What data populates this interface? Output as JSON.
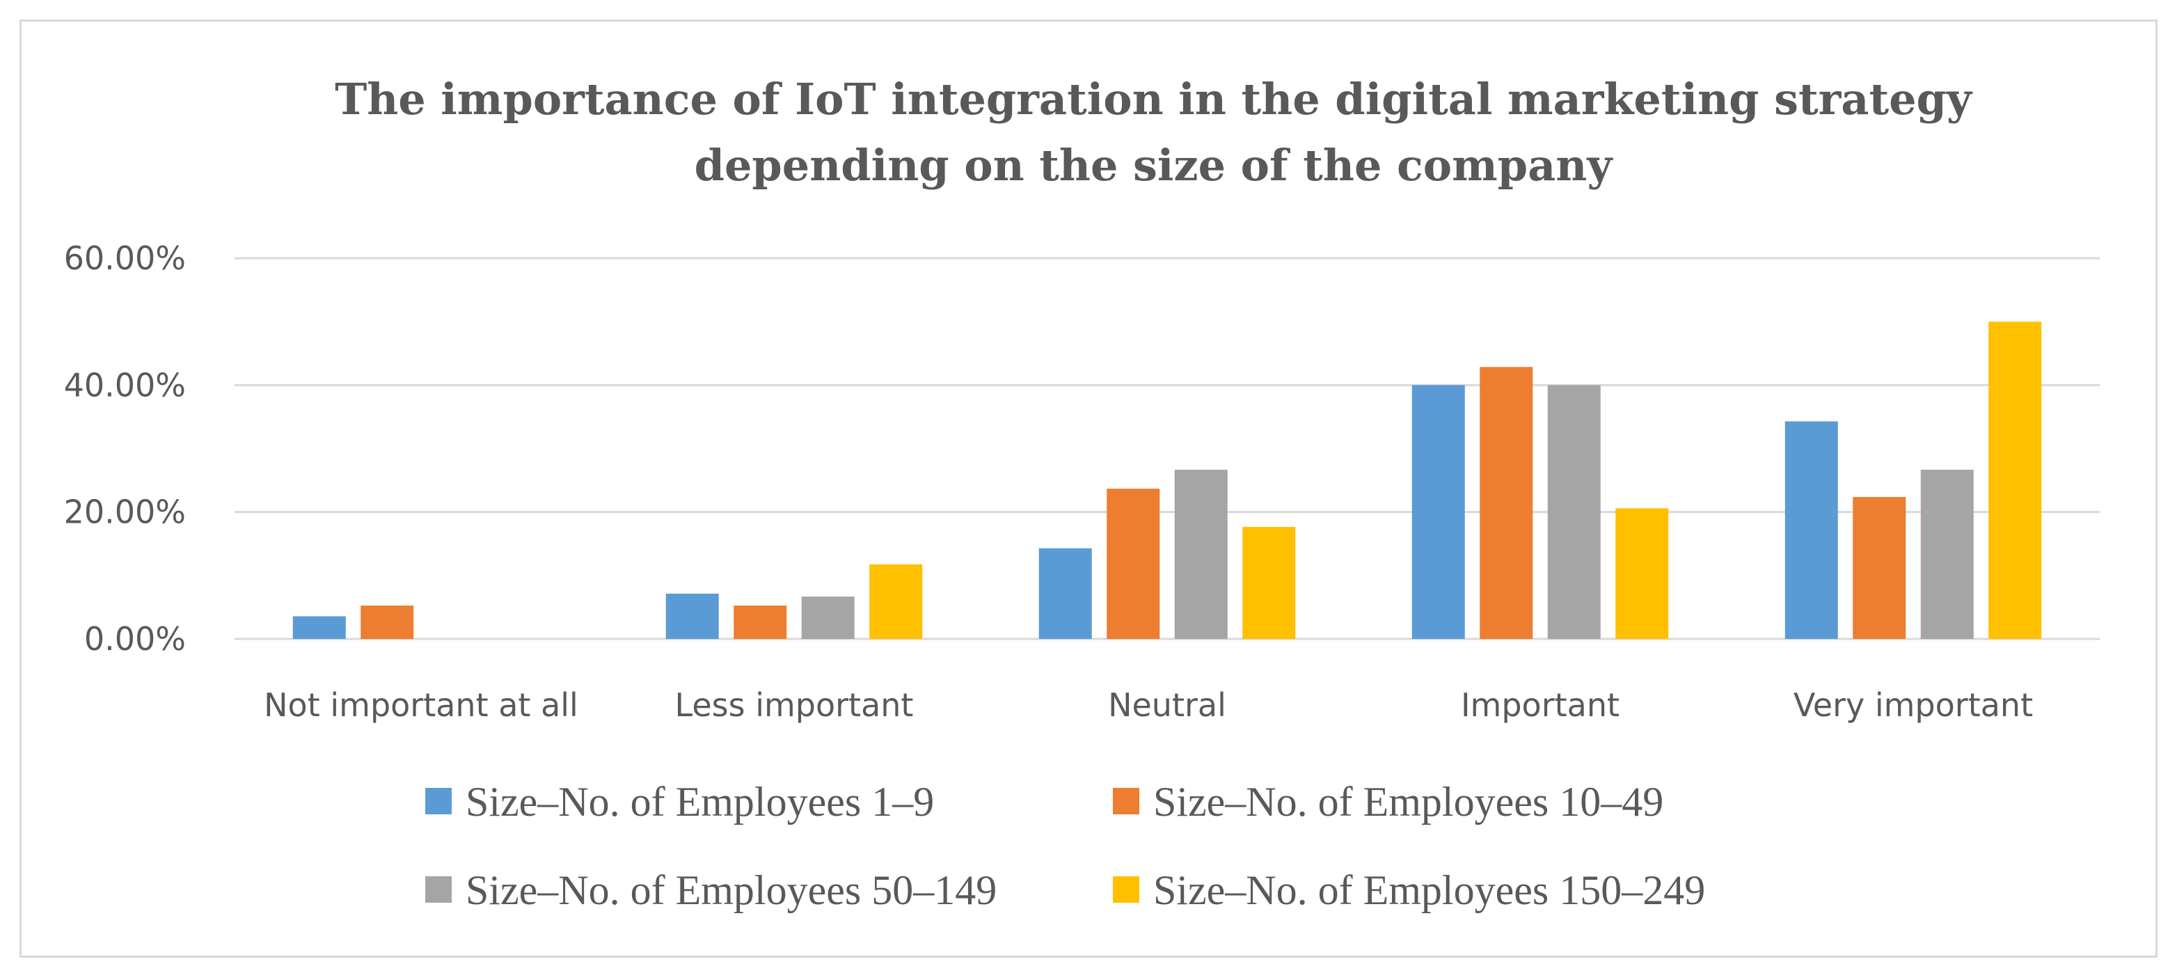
{
  "chart_data": {
    "type": "bar",
    "title": "The importance of IoT integration in the digital marketing strategy depending on the size of the company",
    "title_lines": [
      "The importance of IoT integration in the digital marketing strategy",
      "depending on the size of the company"
    ],
    "categories": [
      "Not important at all",
      "Less important",
      "Neutral",
      "Important",
      "Very important"
    ],
    "series": [
      {
        "name": "Size–No. of Employees 1–9",
        "color": "#5b9bd5",
        "values": [
          3.57,
          7.14,
          14.29,
          40.0,
          34.29
        ]
      },
      {
        "name": "Size–No. of Employees 10–49",
        "color": "#ed7d31",
        "values": [
          5.26,
          5.26,
          23.68,
          42.86,
          22.37
        ]
      },
      {
        "name": "Size–No. of Employees 50–149",
        "color": "#a5a5a5",
        "values": [
          0,
          6.67,
          26.67,
          40.0,
          26.67
        ]
      },
      {
        "name": "Size–No. of Employees 150–249",
        "color": "#ffc000",
        "values": [
          0,
          11.76,
          17.65,
          20.59,
          50.0
        ]
      }
    ],
    "yticks": [
      "0.00%",
      "20.00%",
      "40.00%",
      "60.00%"
    ],
    "ylim": [
      0,
      60
    ],
    "xlabel": "",
    "ylabel": "",
    "legend_position": "bottom",
    "grid": true
  }
}
